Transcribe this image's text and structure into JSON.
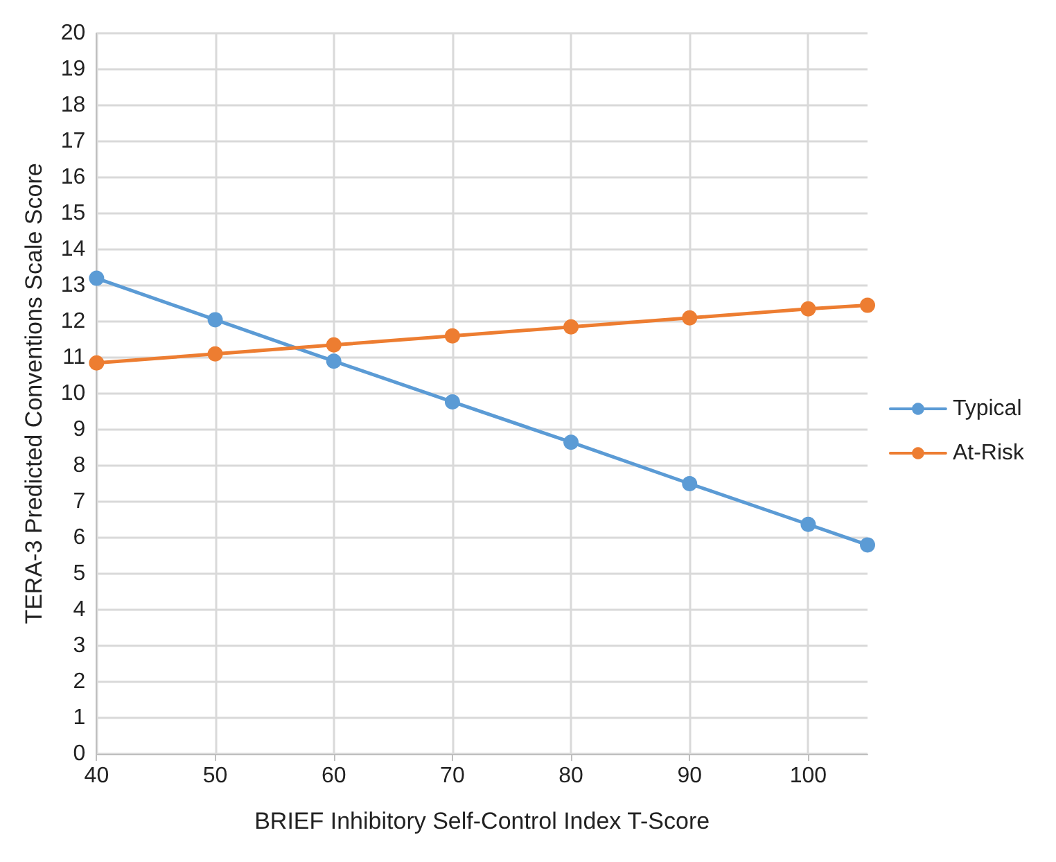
{
  "chart_data": {
    "type": "line",
    "xlabel": "BRIEF Inhibitory Self-Control Index T-Score",
    "ylabel": "TERA-3 Predicted Conventions Scale Score",
    "x": [
      40,
      50,
      60,
      70,
      80,
      90,
      100,
      105
    ],
    "series": [
      {
        "name": "Typical",
        "color": "#5b9bd5",
        "values": [
          13.2,
          12.05,
          10.9,
          9.77,
          8.65,
          7.5,
          6.37,
          5.8
        ]
      },
      {
        "name": "At-Risk",
        "color": "#ed7d31",
        "values": [
          10.85,
          11.1,
          11.35,
          11.6,
          11.85,
          12.1,
          12.35,
          12.45
        ]
      }
    ],
    "xlim": [
      40,
      105
    ],
    "xticks": [
      40,
      50,
      60,
      70,
      80,
      90,
      100
    ],
    "ylim": [
      0,
      20
    ],
    "yticks": [
      0,
      1,
      2,
      3,
      4,
      5,
      6,
      7,
      8,
      9,
      10,
      11,
      12,
      13,
      14,
      15,
      16,
      17,
      18,
      19,
      20
    ],
    "grid": true,
    "legend": "right",
    "marker": "circle",
    "line_style": "solid"
  }
}
